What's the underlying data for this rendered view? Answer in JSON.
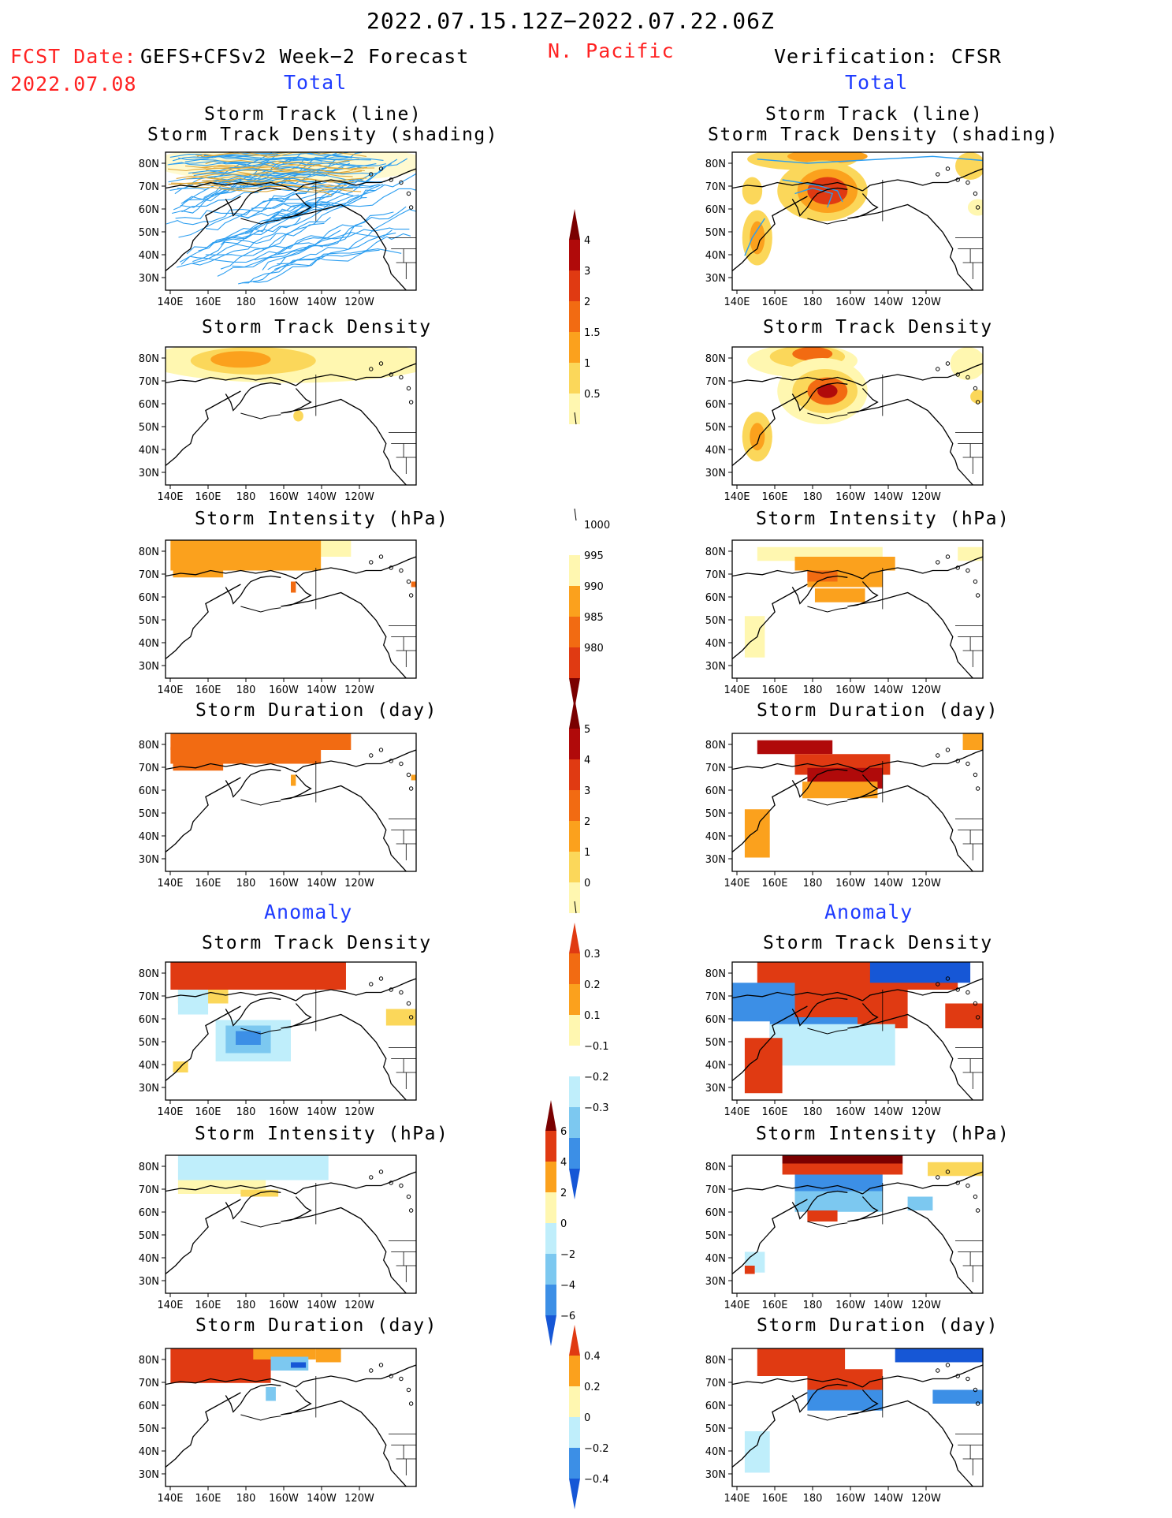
{
  "header": {
    "date_range": "2022.07.15.12Z−2022.07.22.06Z",
    "region": "N. Pacific",
    "fcst_label": "FCST Date:",
    "fcst_model": "GEFS+CFSv2 Week−2 Forecast",
    "fcst_date": "2022.07.08",
    "verification": "Verification: CFSR",
    "total_left": "Total",
    "total_right": "Total",
    "anomaly_left": "Anomaly",
    "anomaly_right": "Anomaly"
  },
  "panels": {
    "track_title_1": "Storm Track (line)",
    "track_title_2": "Storm Track Density (shading)",
    "density_title": "Storm Track Density",
    "intensity_title": "Storm Intensity (hPa)",
    "duration_title": "Storm Duration (day)"
  },
  "axes": {
    "lat_labels": [
      "80N",
      "70N",
      "60N",
      "50N",
      "40N",
      "30N"
    ],
    "lon_labels": [
      "140E",
      "160E",
      "180",
      "160W",
      "140W",
      "120W"
    ]
  },
  "colorbars": {
    "density": [
      "4",
      "3",
      "2",
      "1.5",
      "1",
      "0.5"
    ],
    "intensity": [
      "1000",
      "995",
      "990",
      "985",
      "980"
    ],
    "duration": [
      "5",
      "4",
      "3",
      "2",
      "1",
      "0"
    ],
    "density_anom": [
      "0.3",
      "0.2",
      "0.1",
      "−0.1",
      "−0.2",
      "−0.3"
    ],
    "intensity_anom": [
      "6",
      "4",
      "2",
      "0",
      "−2",
      "−4",
      "−6"
    ],
    "duration_anom": [
      "0.4",
      "0.2",
      "0",
      "−0.2",
      "−0.4"
    ]
  },
  "colors": {
    "title_red": "#ff2222",
    "title_blue": "#1f3cff",
    "warm": [
      "#fff7b0",
      "#fbd75a",
      "#fba11d",
      "#f26b12",
      "#e03a12",
      "#b00a0a",
      "#7a0000"
    ],
    "cool": [
      "#bfeefb",
      "#7cc8f0",
      "#3c8fe6",
      "#1657d6"
    ]
  }
}
